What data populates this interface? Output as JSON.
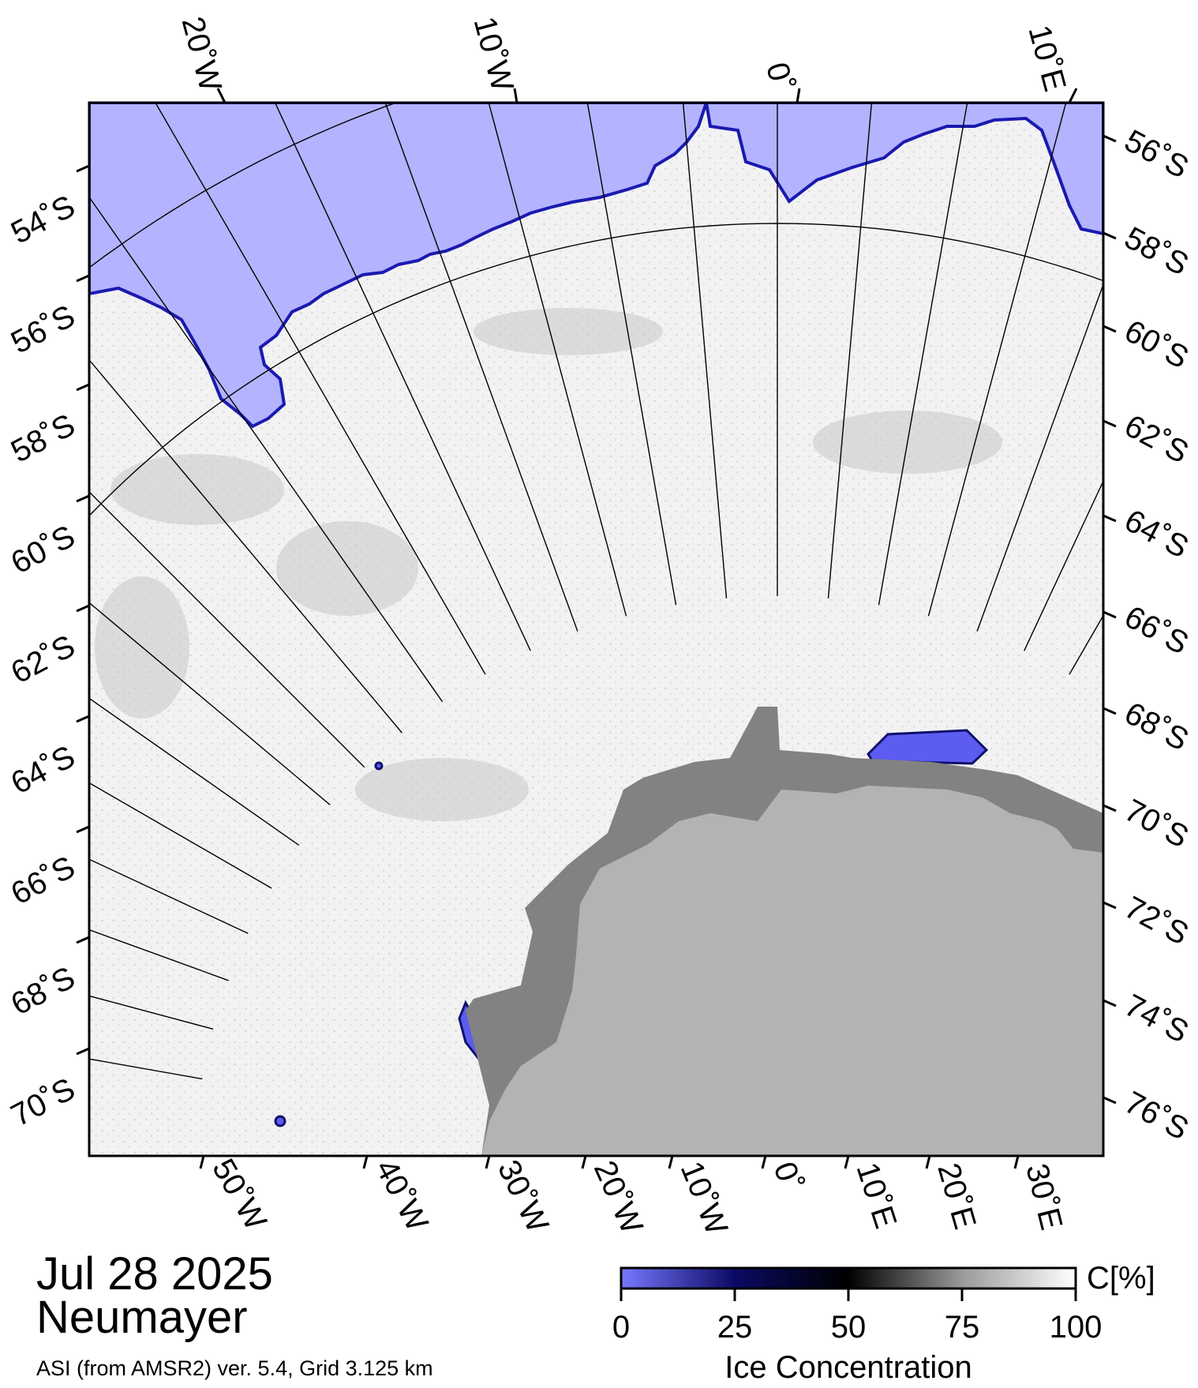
{
  "date": "Jul 28 2025",
  "station": "Neumayer",
  "source": "ASI (from AMSR2) ver. 5.4,  Grid 3.125 km",
  "map": {
    "top_longitude_labels": [
      "20˚W",
      "10˚W",
      "0˚",
      "10˚E"
    ],
    "bottom_longitude_labels": [
      "50˚W",
      "40˚W",
      "30˚W",
      "20˚W",
      "10˚W",
      "0˚",
      "10˚E",
      "20˚E",
      "30˚E"
    ],
    "left_latitude_labels": [
      "54˚S",
      "56˚S",
      "58˚S",
      "60˚S",
      "62˚S",
      "64˚S",
      "66˚S",
      "68˚S",
      "70˚S"
    ],
    "right_latitude_labels": [
      "56˚S",
      "58˚S",
      "60˚S",
      "62˚S",
      "64˚S",
      "66˚S",
      "68˚S",
      "70˚S",
      "72˚S",
      "74˚S",
      "76˚S"
    ],
    "colors": {
      "open_water": "#b3b3ff",
      "land": "#b3b3b3",
      "ice_shelf": "#828282",
      "gridline": "#000000",
      "coast_edge": "#2020c8"
    }
  },
  "colorbar": {
    "title": "Ice Concentration",
    "unit": "C[%]",
    "ticks": [
      "0",
      "25",
      "50",
      "75",
      "100"
    ],
    "range": [
      0,
      100
    ],
    "stops": [
      "#7878ff",
      "#0a0a64",
      "#000000",
      "#9a9a9a",
      "#ffffff"
    ]
  }
}
